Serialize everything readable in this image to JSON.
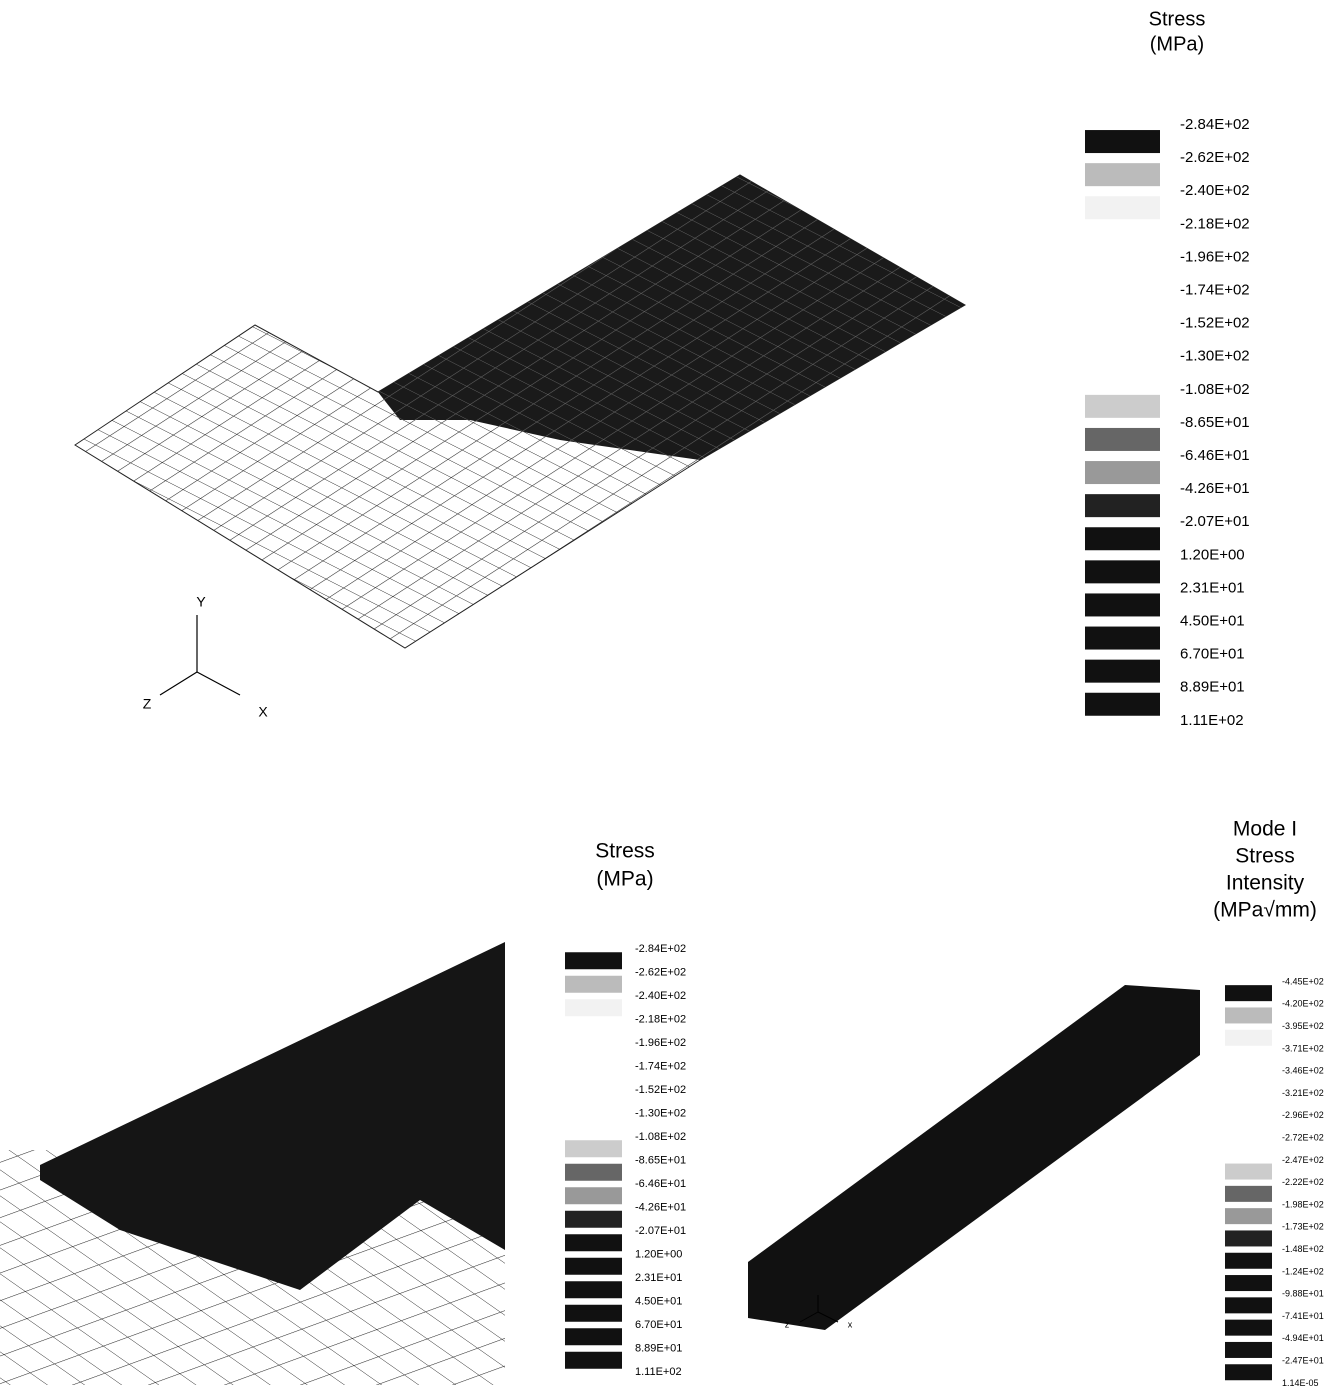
{
  "panels": [
    {
      "legend_title": [
        "Stress",
        "(MPa)"
      ],
      "legend_labels": [
        "-2.84E+02",
        "-2.62E+02",
        "-2.40E+02",
        "-2.18E+02",
        "-1.96E+02",
        "-1.74E+02",
        "-1.52E+02",
        "-1.30E+02",
        "-1.08E+02",
        "-8.65E+01",
        "-6.46E+01",
        "-4.26E+01",
        "-2.07E+01",
        "1.20E+00",
        "2.31E+01",
        "4.50E+01",
        "6.70E+01",
        "8.89E+01",
        "1.11E+02"
      ],
      "axes": [
        "Y",
        "Z",
        "X"
      ]
    },
    {
      "legend_title": [
        "Stress",
        "(MPa)"
      ],
      "legend_labels": [
        "-2.84E+02",
        "-2.62E+02",
        "-2.40E+02",
        "-2.18E+02",
        "-1.96E+02",
        "-1.74E+02",
        "-1.52E+02",
        "-1.30E+02",
        "-1.08E+02",
        "-8.65E+01",
        "-6.46E+01",
        "-4.26E+01",
        "-2.07E+01",
        "1.20E+00",
        "2.31E+01",
        "4.50E+01",
        "6.70E+01",
        "8.89E+01",
        "1.11E+02"
      ]
    },
    {
      "legend_title": [
        "Mode I",
        "Stress",
        "Intensity",
        "(MPa√mm)"
      ],
      "legend_labels": [
        "-4.45E+02",
        "-4.20E+02",
        "-3.95E+02",
        "-3.71E+02",
        "-3.46E+02",
        "-3.21E+02",
        "-2.96E+02",
        "-2.72E+02",
        "-2.47E+02",
        "-2.22E+02",
        "-1.98E+02",
        "-1.73E+02",
        "-1.48E+02",
        "-1.24E+02",
        "-9.88E+01",
        "-7.41E+01",
        "-4.94E+01",
        "-2.47E+01",
        "1.14E-05"
      ],
      "axes": [
        "z",
        "x"
      ]
    }
  ]
}
